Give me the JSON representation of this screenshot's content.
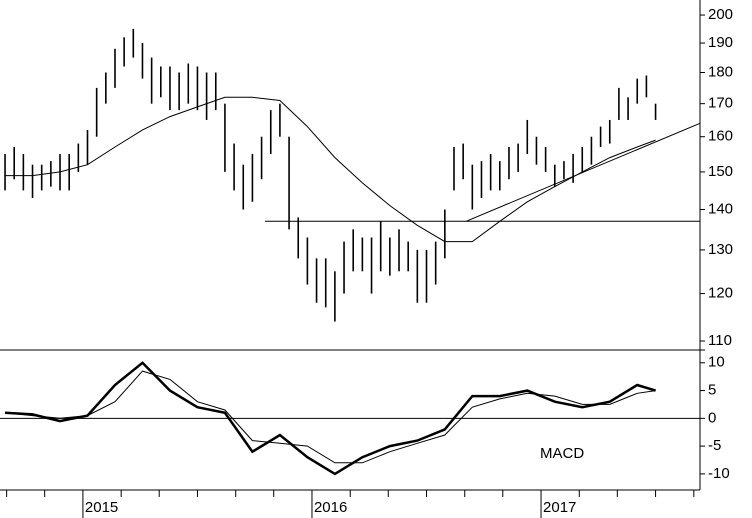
{
  "chart_data": [
    {
      "type": "hilo",
      "log_scale": true,
      "color": "#000000",
      "xlim": [
        2014.638,
        2017.694
      ],
      "ylim": [
        108.2,
        205.6
      ],
      "yticks": [
        110,
        120,
        130,
        140,
        150,
        160,
        170,
        180,
        190,
        200
      ],
      "x": [
        2014.66,
        2014.7,
        2014.74,
        2014.78,
        2014.82,
        2014.86,
        2014.9,
        2014.94,
        2014.98,
        2015.02,
        2015.06,
        2015.1,
        2015.14,
        2015.18,
        2015.22,
        2015.26,
        2015.3,
        2015.34,
        2015.38,
        2015.42,
        2015.46,
        2015.5,
        2015.54,
        2015.58,
        2015.62,
        2015.66,
        2015.7,
        2015.74,
        2015.78,
        2015.82,
        2015.86,
        2015.9,
        2015.94,
        2015.98,
        2016.02,
        2016.06,
        2016.1,
        2016.14,
        2016.18,
        2016.22,
        2016.26,
        2016.3,
        2016.34,
        2016.38,
        2016.42,
        2016.46,
        2016.5,
        2016.54,
        2016.58,
        2016.62,
        2016.66,
        2016.7,
        2016.74,
        2016.78,
        2016.82,
        2016.86,
        2016.9,
        2016.94,
        2016.98,
        2017.02,
        2017.06,
        2017.1,
        2017.14,
        2017.18,
        2017.22,
        2017.26,
        2017.3,
        2017.34,
        2017.38,
        2017.42,
        2017.46,
        2017.5
      ],
      "high": [
        155,
        157,
        155,
        152,
        152,
        153,
        155,
        155,
        158,
        162,
        175,
        180,
        188,
        192,
        195,
        190,
        185,
        182,
        182,
        180,
        183,
        182,
        180,
        180,
        170,
        158,
        152,
        155,
        160,
        168,
        170,
        160,
        138,
        133,
        128,
        128,
        125,
        132,
        135,
        133,
        133,
        137,
        133,
        135,
        132,
        130,
        130,
        132,
        140,
        157,
        158,
        152,
        153,
        155,
        153,
        157,
        158,
        165,
        160,
        157,
        152,
        153,
        155,
        157,
        160,
        163,
        165,
        175,
        172,
        178,
        179,
        170
      ],
      "low": [
        145,
        148,
        145,
        143,
        145,
        146,
        145,
        145,
        150,
        152,
        160,
        170,
        175,
        182,
        185,
        178,
        170,
        172,
        168,
        168,
        170,
        168,
        165,
        168,
        150,
        145,
        140,
        142,
        148,
        155,
        160,
        135,
        128,
        122,
        118,
        117,
        114,
        120,
        125,
        125,
        120,
        125,
        124,
        125,
        125,
        118,
        118,
        122,
        128,
        145,
        148,
        140,
        143,
        145,
        145,
        148,
        150,
        155,
        152,
        150,
        146,
        148,
        147,
        150,
        152,
        157,
        158,
        165,
        165,
        170,
        172,
        165
      ],
      "lines": [
        {
          "x": [
            2014.66,
            2014.78,
            2014.9,
            2015.02,
            2015.14,
            2015.26,
            2015.38,
            2015.5,
            2015.62,
            2015.74,
            2015.86,
            2015.98,
            2016.1,
            2016.22,
            2016.34,
            2016.46,
            2016.58,
            2016.7,
            2016.82,
            2016.94,
            2017.06,
            2017.18,
            2017.3,
            2017.42,
            2017.5
          ],
          "values": [
            149,
            149,
            150,
            152,
            157,
            162,
            166,
            169,
            172,
            172,
            171,
            163,
            154,
            147,
            141,
            136,
            132,
            132,
            137,
            142,
            146,
            150,
            154,
            157,
            159
          ],
          "width": 1
        },
        {
          "x": [
            2015.795,
            2017.694
          ],
          "values": [
            137,
            137
          ],
          "width": 1
        },
        {
          "x": [
            2016.673,
            2017.694
          ],
          "values": [
            137,
            164
          ],
          "width": 1
        }
      ]
    },
    {
      "type": "line",
      "annotation": "MACD",
      "zero_line": true,
      "xlim": [
        2014.638,
        2017.694
      ],
      "ylim": [
        -12.9,
        12.3
      ],
      "yticks": [
        10,
        5,
        0,
        -5,
        -10
      ],
      "xticks": [
        2015,
        2016,
        2017
      ],
      "xminorticks": [
        2014.667,
        2014.833,
        2015.167,
        2015.333,
        2015.5,
        2015.667,
        2015.833,
        2016.167,
        2016.333,
        2016.5,
        2016.667,
        2016.833,
        2017.167,
        2017.333,
        2017.5,
        2017.667
      ],
      "x": [
        2014.66,
        2014.78,
        2014.9,
        2015.02,
        2015.14,
        2015.26,
        2015.38,
        2015.5,
        2015.62,
        2015.74,
        2015.86,
        2015.98,
        2016.1,
        2016.22,
        2016.34,
        2016.46,
        2016.58,
        2016.7,
        2016.82,
        2016.94,
        2017.06,
        2017.18,
        2017.3,
        2017.42,
        2017.5
      ],
      "series": [
        {
          "color": "#000000",
          "width": 2.5,
          "values": [
            1,
            0.7,
            -0.5,
            0.5,
            6,
            10,
            5,
            2,
            1,
            -6,
            -3,
            -7,
            -10,
            -7,
            -5,
            -4,
            -2,
            4,
            4,
            5,
            3,
            2,
            3,
            6,
            5
          ]
        },
        {
          "color": "#000000",
          "width": 1,
          "values": [
            1,
            0.5,
            0,
            0.5,
            3,
            8.5,
            7,
            3,
            1.5,
            -4,
            -4.5,
            -5,
            -8,
            -8,
            -6,
            -4.5,
            -3,
            2,
            3.5,
            4.5,
            4,
            2.5,
            2.5,
            4.5,
            5
          ]
        }
      ]
    }
  ]
}
